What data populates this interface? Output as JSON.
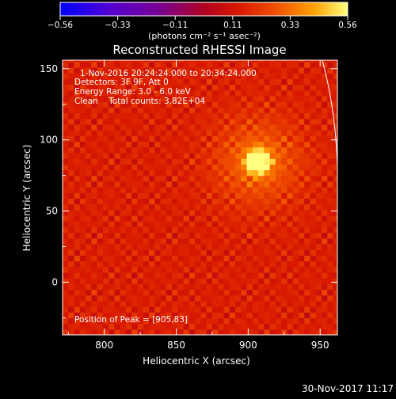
{
  "chart_data": {
    "type": "heatmap",
    "title": "Reconstructed RHESSI Image",
    "xlabel": "Heliocentric X (arcsec)",
    "ylabel": "Heliocentric Y (arcsec)",
    "xlim": [
      771,
      962
    ],
    "ylim": [
      -37,
      156
    ],
    "xticks": [
      800,
      850,
      900,
      950
    ],
    "yticks": [
      0,
      50,
      100,
      150
    ],
    "colorbar": {
      "range": [
        -0.56,
        0.56
      ],
      "ticks": [
        "-0.56",
        "-0.33",
        "-0.11",
        "0.11",
        "0.33",
        "0.56"
      ],
      "unit_label": "(photons cm⁻² s⁻¹ asec⁻²)",
      "colormap": "rhessi-hot"
    },
    "annotations": {
      "time": "1-Nov-2016 20:24:24.000 to 20:34:24.000",
      "detectors": "Detectors: 3F 9F, Att 0",
      "energy": "Energy Range: 3.0 - 6.0 keV",
      "clean": "Clean    Total counts: 3.82E+04",
      "peak": "Position of Peak = [905,83]"
    },
    "peak": {
      "x": 905,
      "y": 83
    },
    "source_peak_value": 0.56,
    "background_level": 0.15,
    "limb_arc": true,
    "timestamp": "30-Nov-2017 11:17"
  }
}
